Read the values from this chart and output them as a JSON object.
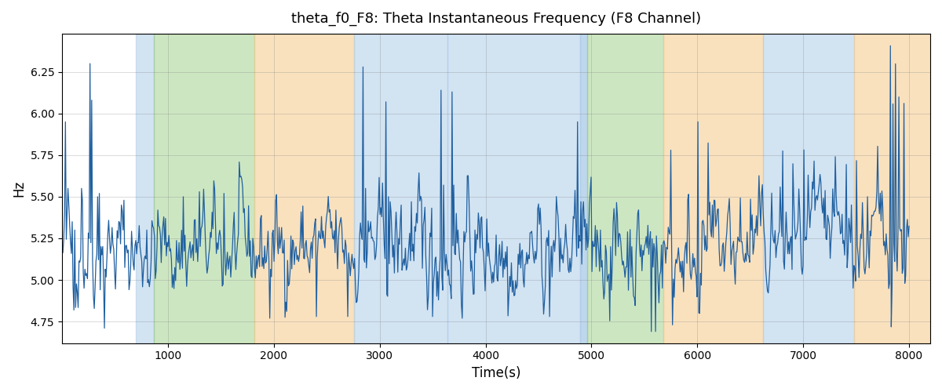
{
  "title": "theta_f0_F8: Theta Instantaneous Frequency (F8 Channel)",
  "xlabel": "Time(s)",
  "ylabel": "Hz",
  "xlim": [
    0,
    8200
  ],
  "ylim": [
    4.62,
    6.48
  ],
  "yticks": [
    4.75,
    5.0,
    5.25,
    5.5,
    5.75,
    6.0,
    6.25
  ],
  "xticks": [
    1000,
    2000,
    3000,
    4000,
    5000,
    6000,
    7000,
    8000
  ],
  "line_color": "#2060a0",
  "background_color": "#ffffff",
  "bands": [
    {
      "xmin": 700,
      "xmax": 870,
      "color": "#aecde8",
      "alpha": 0.55
    },
    {
      "xmin": 870,
      "xmax": 1820,
      "color": "#90c878",
      "alpha": 0.45
    },
    {
      "xmin": 1820,
      "xmax": 2760,
      "color": "#f5c98a",
      "alpha": 0.55
    },
    {
      "xmin": 2760,
      "xmax": 3640,
      "color": "#aecde8",
      "alpha": 0.55
    },
    {
      "xmin": 3640,
      "xmax": 4890,
      "color": "#aecde8",
      "alpha": 0.55
    },
    {
      "xmin": 4890,
      "xmax": 4960,
      "color": "#aecde8",
      "alpha": 0.8
    },
    {
      "xmin": 4960,
      "xmax": 5680,
      "color": "#90c878",
      "alpha": 0.45
    },
    {
      "xmin": 5680,
      "xmax": 6620,
      "color": "#f5c98a",
      "alpha": 0.55
    },
    {
      "xmin": 6620,
      "xmax": 7480,
      "color": "#aecde8",
      "alpha": 0.55
    },
    {
      "xmin": 7480,
      "xmax": 8200,
      "color": "#f5c98a",
      "alpha": 0.55
    }
  ],
  "n_points": 1000,
  "seed": 42,
  "base_freq": 5.18,
  "noise_std": 0.12
}
